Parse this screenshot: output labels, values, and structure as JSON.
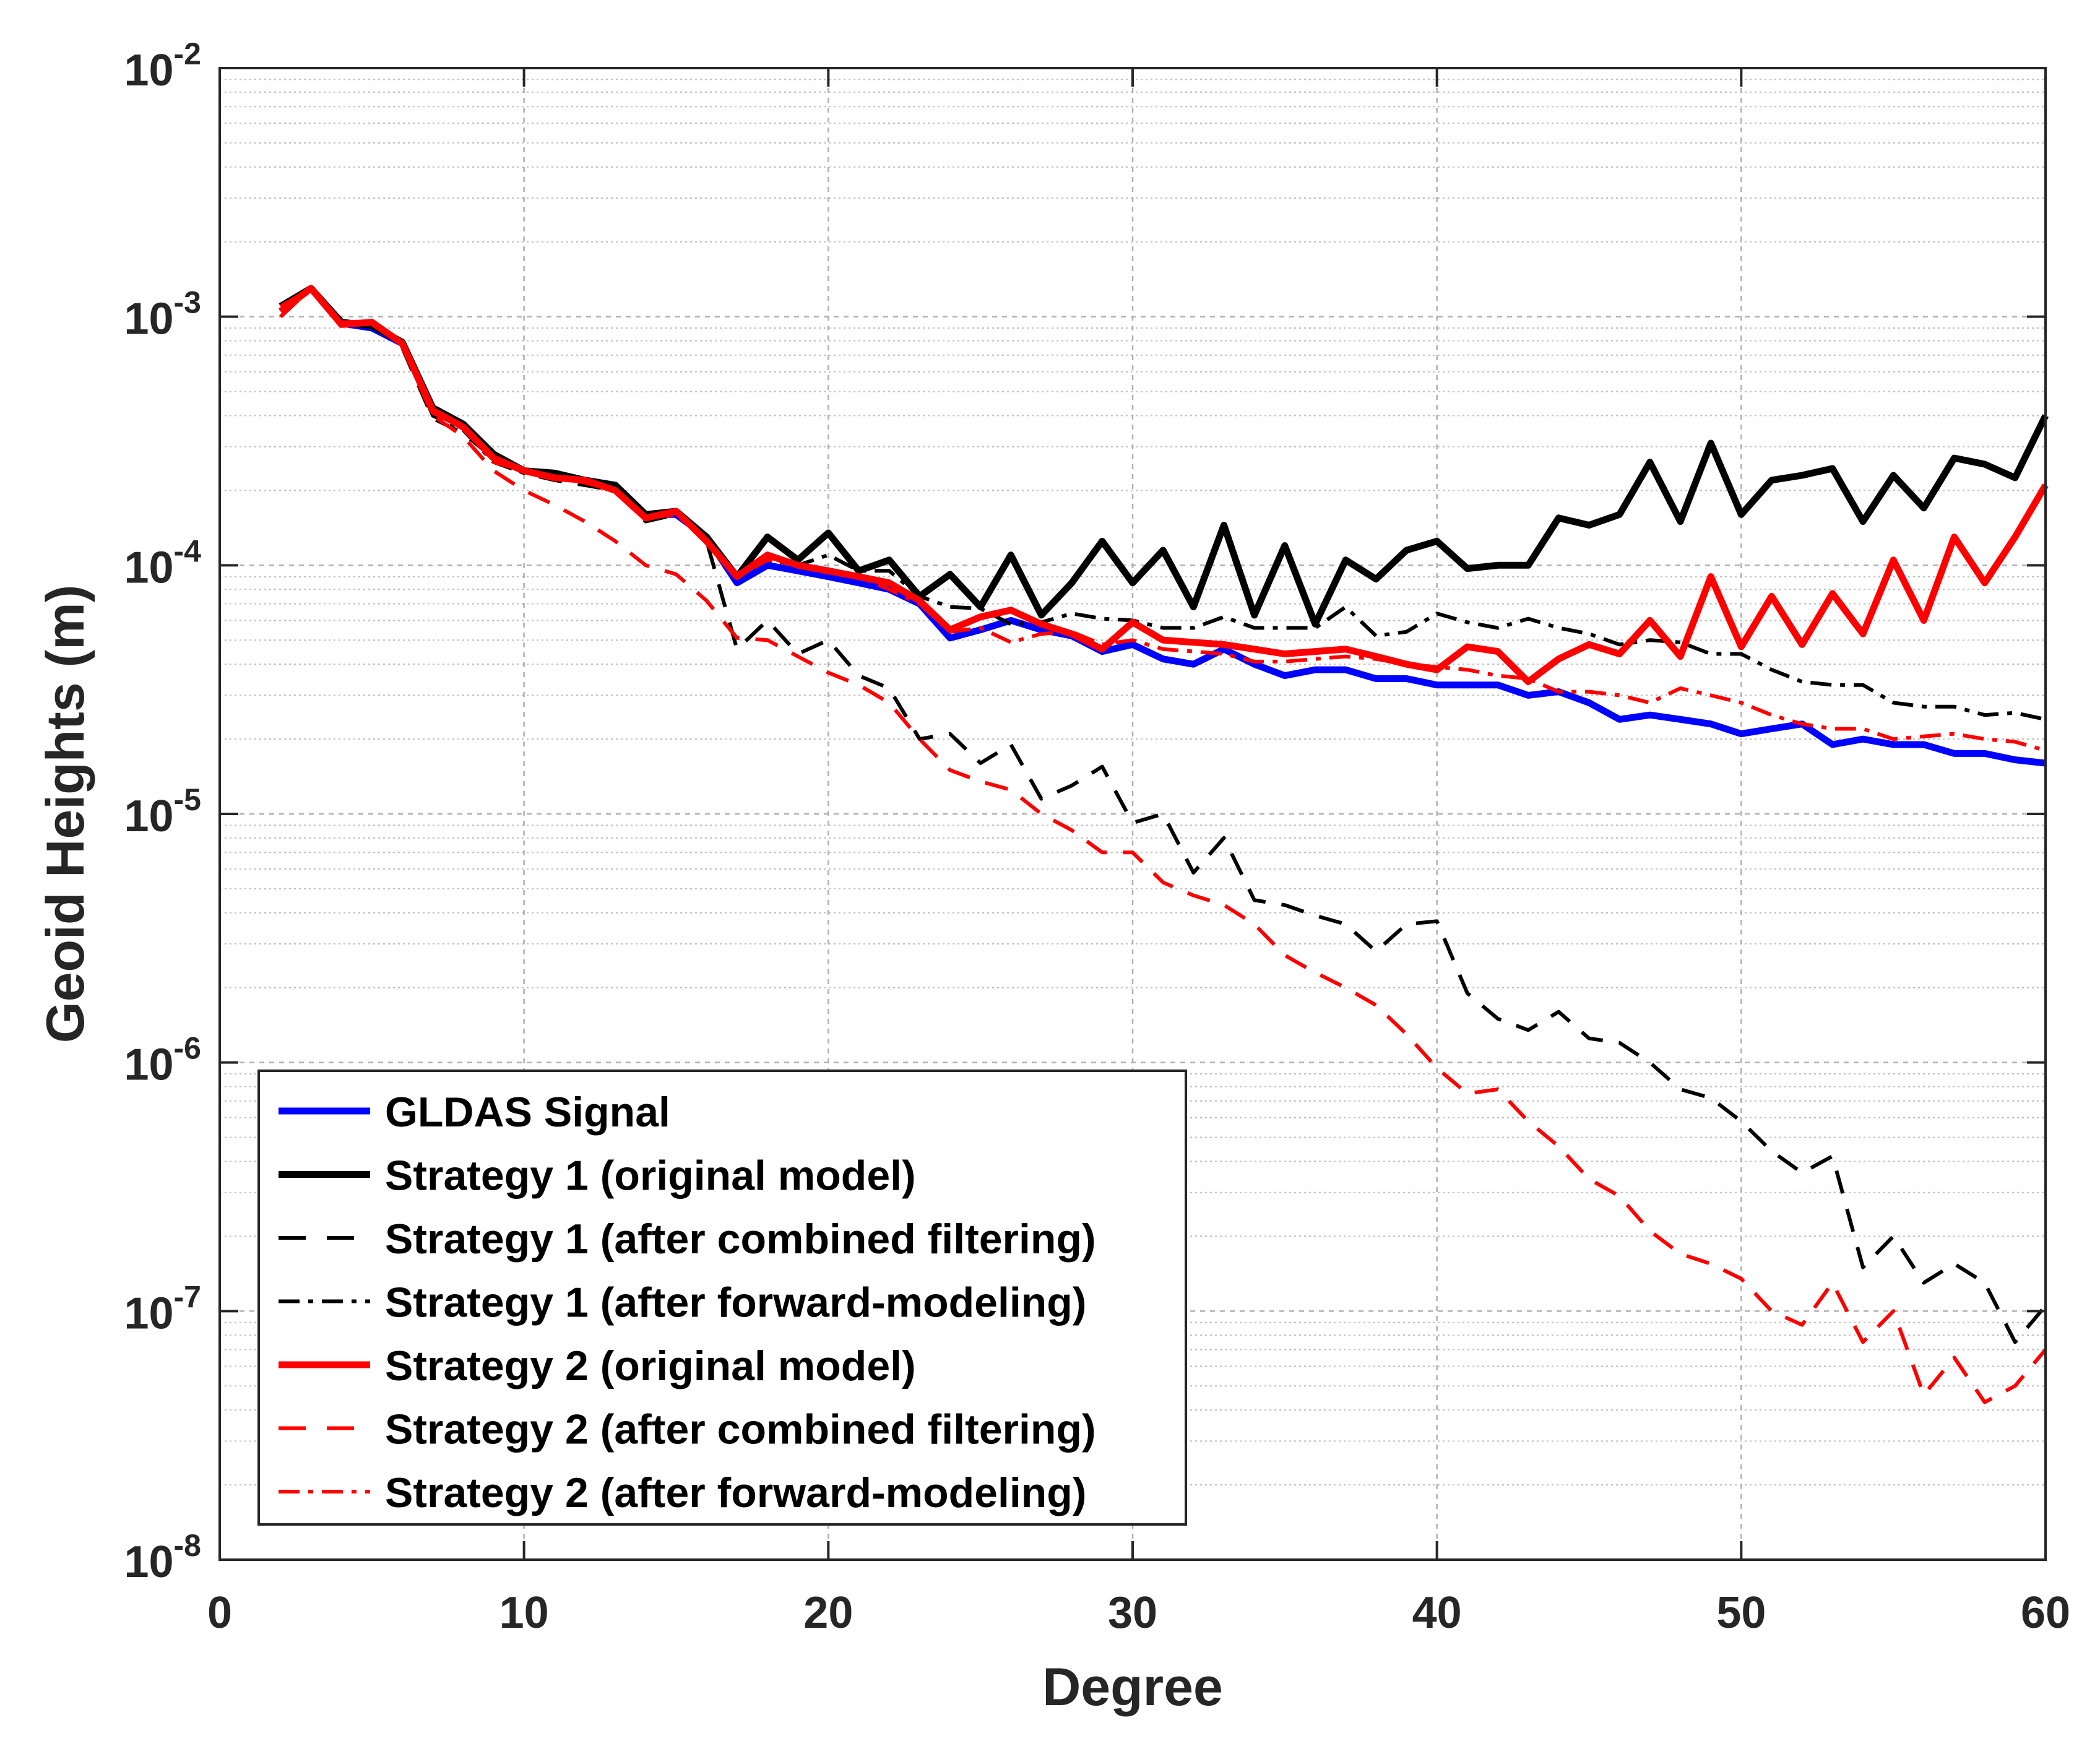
{
  "chart_data": {
    "type": "line",
    "title": "",
    "xlabel": "Degree",
    "ylabel": "Geoid Heights (m)",
    "xlim": [
      0,
      60
    ],
    "ylim_log10": [
      -8,
      -2
    ],
    "y_scale": "log",
    "grid": true,
    "legend_position": "bottom-left",
    "x_ticks": [
      0,
      10,
      20,
      30,
      40,
      50,
      60
    ],
    "y_tick_exponents": [
      -8,
      -7,
      -6,
      -5,
      -4,
      -3,
      -2
    ],
    "y_tick_base": "10",
    "x": [
      2,
      3,
      4,
      5,
      6,
      7,
      8,
      9,
      10,
      11,
      12,
      13,
      14,
      15,
      16,
      17,
      18,
      19,
      20,
      21,
      22,
      23,
      24,
      25,
      26,
      27,
      28,
      29,
      30,
      31,
      32,
      33,
      34,
      35,
      36,
      37,
      38,
      39,
      40,
      41,
      42,
      43,
      44,
      45,
      46,
      47,
      48,
      49,
      50,
      51,
      52,
      53,
      54,
      55,
      56,
      57,
      58,
      59,
      60
    ],
    "series": [
      {
        "name": "GLDAS Signal",
        "color": "#0000ff",
        "style": "solid",
        "values": [
          0.0011,
          0.0013,
          0.00094,
          0.0009,
          0.00078,
          0.00042,
          0.00036,
          0.00027,
          0.00024,
          0.00023,
          0.00022,
          0.00021,
          0.00016,
          0.00016,
          0.00013,
          8.5e-05,
          0.0001,
          9.5e-05,
          9e-05,
          8.5e-05,
          8e-05,
          7e-05,
          5.1e-05,
          5.5e-05,
          6e-05,
          5.5e-05,
          5.2e-05,
          4.5e-05,
          4.8e-05,
          4.2e-05,
          4e-05,
          4.6e-05,
          4e-05,
          3.6e-05,
          3.8e-05,
          3.8e-05,
          3.5e-05,
          3.5e-05,
          3.3e-05,
          3.3e-05,
          3.3e-05,
          3e-05,
          3.1e-05,
          2.8e-05,
          2.4e-05,
          2.5e-05,
          2.4e-05,
          2.3e-05,
          2.1e-05,
          2.2e-05,
          2.3e-05,
          1.9e-05,
          2e-05,
          1.9e-05,
          1.9e-05,
          1.75e-05,
          1.75e-05,
          1.65e-05,
          1.6e-05
        ]
      },
      {
        "name": "Strategy 1 (original model)",
        "color": "#000000",
        "style": "solid",
        "values": [
          0.0011,
          0.0013,
          0.00095,
          0.00092,
          0.00079,
          0.00043,
          0.00037,
          0.00028,
          0.00024,
          0.000235,
          0.00022,
          0.00021,
          0.00016,
          0.000165,
          0.00013,
          9e-05,
          0.00013,
          0.000105,
          0.000135,
          9.5e-05,
          0.000105,
          7.5e-05,
          9.2e-05,
          6.8e-05,
          0.00011,
          6.3e-05,
          8.5e-05,
          0.000125,
          8.5e-05,
          0.000115,
          6.8e-05,
          0.000145,
          6.3e-05,
          0.00012,
          5.8e-05,
          0.000105,
          8.8e-05,
          0.000115,
          0.000125,
          9.7e-05,
          0.0001,
          0.0001,
          0.000155,
          0.000145,
          0.00016,
          0.00026,
          0.00015,
          0.00031,
          0.00016,
          0.00022,
          0.00023,
          0.000245,
          0.00015,
          0.00023,
          0.00017,
          0.00027,
          0.000255,
          0.000225,
          0.0004
        ]
      },
      {
        "name": "Strategy 1 (after combined filtering)",
        "color": "#000000",
        "style": "dashed",
        "values": [
          0.001,
          0.0013,
          0.00095,
          0.00095,
          0.00075,
          0.00039,
          0.00034,
          0.00027,
          0.000235,
          0.00022,
          0.00021,
          0.0002,
          0.00015,
          0.00016,
          0.000125,
          4.6e-05,
          6e-05,
          4.4e-05,
          5e-05,
          3.6e-05,
          3.2e-05,
          2e-05,
          2.1e-05,
          1.6e-05,
          1.9e-05,
          1.15e-05,
          1.3e-05,
          1.55e-05,
          9.2e-06,
          1e-05,
          5.8e-06,
          8e-06,
          4.5e-06,
          4.3e-06,
          3.9e-06,
          3.6e-06,
          2.8e-06,
          3.6e-06,
          3.7e-06,
          1.9e-06,
          1.5e-06,
          1.35e-06,
          1.6e-06,
          1.25e-06,
          1.2e-06,
          1e-06,
          7.8e-07,
          7.2e-07,
          5.8e-07,
          4.4e-07,
          3.6e-07,
          4.2e-07,
          1.5e-07,
          2e-07,
          1.3e-07,
          1.55e-07,
          1.3e-07,
          7.5e-08,
          1.05e-07
        ]
      },
      {
        "name": "Strategy 1 (after forward-modeling)",
        "color": "#000000",
        "style": "dashdot",
        "values": [
          0.0011,
          0.0013,
          0.00094,
          0.00094,
          0.00078,
          0.0004,
          0.00035,
          0.00026,
          0.000235,
          0.00023,
          0.00022,
          0.000205,
          0.00016,
          0.00016,
          0.00013,
          9e-05,
          0.000105,
          0.0001,
          0.00011,
          9.5e-05,
          9.5e-05,
          7.5e-05,
          6.8e-05,
          6.7e-05,
          5.8e-05,
          5.9e-05,
          6.4e-05,
          6.1e-05,
          6e-05,
          5.6e-05,
          5.6e-05,
          6.2e-05,
          5.6e-05,
          5.6e-05,
          5.6e-05,
          6.8e-05,
          5.2e-05,
          5.4e-05,
          6.4e-05,
          5.9e-05,
          5.6e-05,
          6.1e-05,
          5.6e-05,
          5.3e-05,
          4.8e-05,
          5e-05,
          4.9e-05,
          4.4e-05,
          4.4e-05,
          3.8e-05,
          3.4e-05,
          3.3e-05,
          3.3e-05,
          2.8e-05,
          2.7e-05,
          2.7e-05,
          2.5e-05,
          2.55e-05,
          2.4e-05
        ]
      },
      {
        "name": "Strategy 2 (original model)",
        "color": "#ff0000",
        "style": "solid",
        "values": [
          0.00105,
          0.0013,
          0.00093,
          0.00095,
          0.00078,
          0.00042,
          0.00036,
          0.00027,
          0.00024,
          0.000225,
          0.00022,
          0.0002,
          0.000155,
          0.000165,
          0.000125,
          9e-05,
          0.00011,
          0.0001,
          9.5e-05,
          9e-05,
          8.5e-05,
          7.2e-05,
          5.5e-05,
          6.2e-05,
          6.6e-05,
          5.8e-05,
          5.3e-05,
          4.6e-05,
          5.9e-05,
          5e-05,
          4.9e-05,
          4.8e-05,
          4.6e-05,
          4.4e-05,
          4.5e-05,
          4.6e-05,
          4.3e-05,
          4e-05,
          3.8e-05,
          4.7e-05,
          4.5e-05,
          3.4e-05,
          4.2e-05,
          4.8e-05,
          4.4e-05,
          6e-05,
          4.3e-05,
          9e-05,
          4.7e-05,
          7.5e-05,
          4.8e-05,
          7.7e-05,
          5.3e-05,
          0.000105,
          6e-05,
          0.00013,
          8.5e-05,
          0.00013,
          0.00021
        ]
      },
      {
        "name": "Strategy 2 (after combined filtering)",
        "color": "#ff0000",
        "style": "dashed",
        "values": [
          0.001,
          0.0013,
          0.00095,
          0.00096,
          0.00076,
          0.0004,
          0.00033,
          0.00024,
          0.0002,
          0.000175,
          0.00015,
          0.000125,
          0.0001,
          9.2e-05,
          7.2e-05,
          5.1e-05,
          5e-05,
          4.3e-05,
          3.7e-05,
          3.3e-05,
          2.8e-05,
          2e-05,
          1.5e-05,
          1.35e-05,
          1.25e-05,
          1e-05,
          8.6e-06,
          7e-06,
          7e-06,
          5.3e-06,
          4.7e-06,
          4.3e-06,
          3.6e-06,
          2.7e-06,
          2.3e-06,
          2e-06,
          1.7e-06,
          1.3e-06,
          9.5e-07,
          7.5e-07,
          7.8e-07,
          5.8e-07,
          4.6e-07,
          3.4e-07,
          2.9e-07,
          2.1e-07,
          1.7e-07,
          1.55e-07,
          1.35e-07,
          1e-07,
          8.8e-08,
          1.3e-07,
          7.5e-08,
          1e-07,
          4.6e-08,
          6.5e-08,
          4.3e-08,
          5e-08,
          7e-08
        ]
      },
      {
        "name": "Strategy 2 (after forward-modeling)",
        "color": "#ff0000",
        "style": "dashdot",
        "values": [
          0.0011,
          0.0013,
          0.00094,
          0.00093,
          0.00078,
          0.00041,
          0.00036,
          0.00026,
          0.00024,
          0.000225,
          0.000215,
          0.0002,
          0.000155,
          0.00016,
          0.000125,
          9e-05,
          0.000105,
          0.0001,
          9.3e-05,
          9e-05,
          8e-05,
          7e-05,
          5.4e-05,
          5.6e-05,
          4.9e-05,
          5.3e-05,
          5.4e-05,
          4.8e-05,
          5e-05,
          4.6e-05,
          4.5e-05,
          4.4e-05,
          4.1e-05,
          4.1e-05,
          4.2e-05,
          4.3e-05,
          4.2e-05,
          4e-05,
          3.9e-05,
          3.8e-05,
          3.6e-05,
          3.5e-05,
          3.1e-05,
          3.1e-05,
          3e-05,
          2.8e-05,
          3.2e-05,
          3e-05,
          2.8e-05,
          2.5e-05,
          2.3e-05,
          2.2e-05,
          2.2e-05,
          2e-05,
          2.05e-05,
          2.1e-05,
          2e-05,
          1.95e-05,
          1.8e-05
        ]
      }
    ]
  }
}
